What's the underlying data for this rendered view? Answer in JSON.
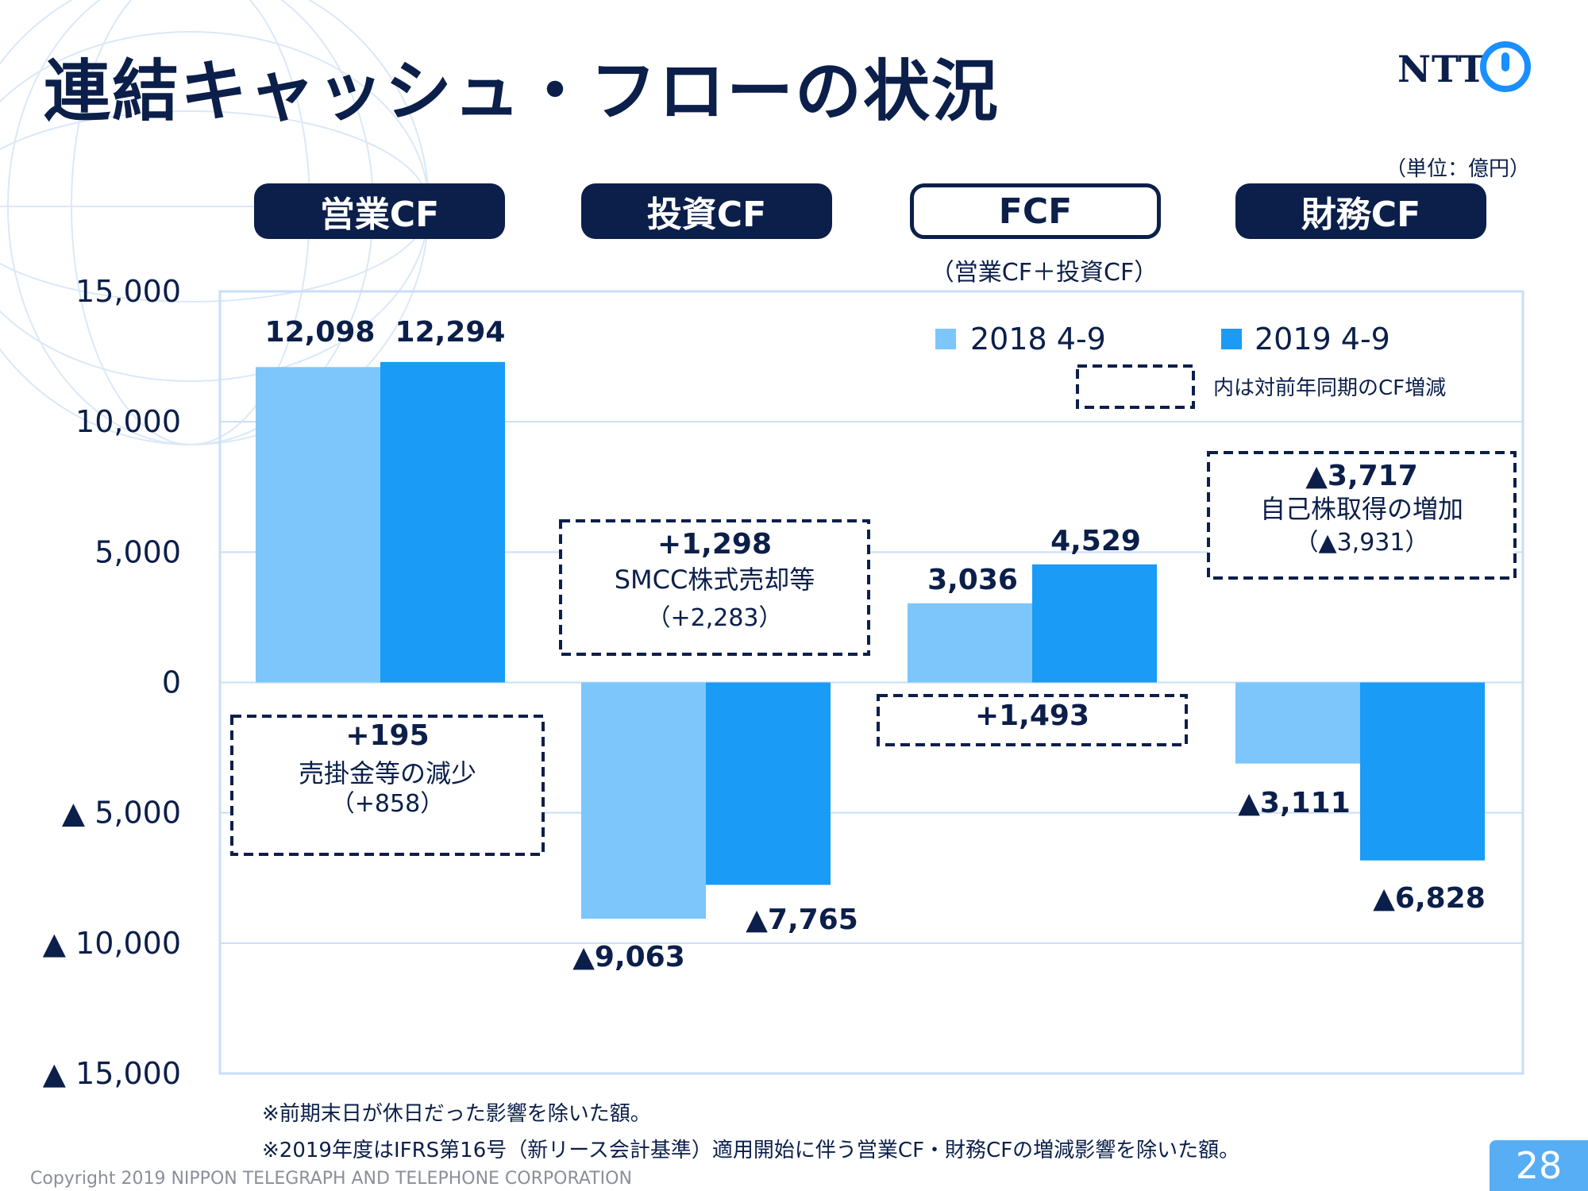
{
  "header": {
    "title": "連結キャッシュ・フローの状況",
    "logo_text": "NTT",
    "unit": "（単位：億円）"
  },
  "categories": [
    "営業CF",
    "投資CF",
    "FCF",
    "財務CF"
  ],
  "fcf_subtitle": "（営業CF＋投資CF）",
  "legend": {
    "series1": "2018 4-9",
    "series2": "2019 4-9",
    "dashed_note": "内は対前年同期のCF増減"
  },
  "callouts": [
    {
      "line1": "+195",
      "line2": "売掛金等の減少",
      "line3": "（+858）"
    },
    {
      "line1": "+1,298",
      "line2": "SMCC株式売却等",
      "line3": "（+2,283）"
    },
    {
      "line1": "+1,493"
    },
    {
      "line1": "▲3,717",
      "line2": "自己株取得の増加",
      "line3": "（▲3,931）"
    }
  ],
  "footnotes": [
    "※前期末日が休日だった影響を除いた額。",
    "※2019年度はIFRS第16号（新リース会計基準）適用開始に伴う営業CF・財務CFの増減影響を除いた額。"
  ],
  "copyright": "Copyright 2019 NIPPON TELEGRAPH AND TELEPHONE CORPORATION",
  "page_number": "28",
  "colors": {
    "navy": "#0b1f4a",
    "series1": "#7cc6fb",
    "series2": "#1a9bf5",
    "grid": "#c9defa"
  },
  "chart_data": {
    "type": "bar",
    "categories": [
      "営業CF",
      "投資CF",
      "FCF",
      "財務CF"
    ],
    "series": [
      {
        "name": "2018 4-9",
        "values": [
          12098,
          -9063,
          3036,
          -3111
        ]
      },
      {
        "name": "2019 4-9",
        "values": [
          12294,
          -7765,
          4529,
          -6828
        ]
      }
    ],
    "value_labels": [
      [
        "12,098",
        "▲9,063",
        "3,036",
        "▲3,111"
      ],
      [
        "12,294",
        "▲7,765",
        "4,529",
        "▲6,828"
      ]
    ],
    "ylim": [
      -15000,
      15000
    ],
    "yticks": [
      15000,
      10000,
      5000,
      0,
      -5000,
      -10000,
      -15000
    ],
    "ytick_labels": [
      "15,000",
      "10,000",
      "5,000",
      "0",
      "▲ 5,000",
      "▲ 10,000",
      "▲ 15,000"
    ],
    "grid": true,
    "legend_position": "top-right"
  }
}
